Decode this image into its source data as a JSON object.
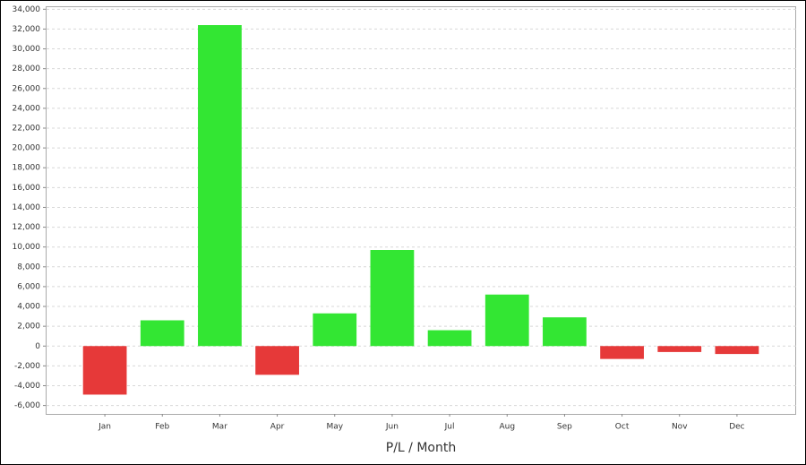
{
  "chart_data": {
    "type": "bar",
    "x_label": "P/L / Month",
    "categories": [
      "Jan",
      "Feb",
      "Mar",
      "Apr",
      "May",
      "Jun",
      "Jul",
      "Aug",
      "Sep",
      "Oct",
      "Nov",
      "Dec"
    ],
    "values": [
      -4900,
      2600,
      32400,
      -2900,
      3300,
      9700,
      1600,
      5200,
      2900,
      -1300,
      -600,
      -800
    ],
    "positive_color": "#33e633",
    "negative_color": "#e63939",
    "ylim": [
      -6850,
      34300
    ],
    "yticks": [
      {
        "value": -6000,
        "label": "-6,000"
      },
      {
        "value": -4000,
        "label": "-4,000"
      },
      {
        "value": -2000,
        "label": "-2,000"
      },
      0,
      {
        "value": 2000,
        "label": "2,000"
      },
      {
        "value": 4000,
        "label": "4,000"
      },
      {
        "value": 6000,
        "label": "6,000"
      },
      {
        "value": 8000,
        "label": "8,000"
      },
      {
        "value": 10000,
        "label": "10,000"
      },
      {
        "value": 12000,
        "label": "12,000"
      },
      {
        "value": 14000,
        "label": "14,000"
      },
      {
        "value": 16000,
        "label": "16,000"
      },
      {
        "value": 18000,
        "label": "18,000"
      },
      {
        "value": 20000,
        "label": "20,000"
      },
      {
        "value": 22000,
        "label": "22,000"
      },
      {
        "value": 24000,
        "label": "24,000"
      },
      {
        "value": 26000,
        "label": "26,000"
      },
      {
        "value": 28000,
        "label": "28,000"
      },
      {
        "value": 30000,
        "label": "30,000"
      },
      {
        "value": 32000,
        "label": "32,000"
      },
      {
        "value": 34000,
        "label": "34,000"
      }
    ],
    "grid": true
  }
}
